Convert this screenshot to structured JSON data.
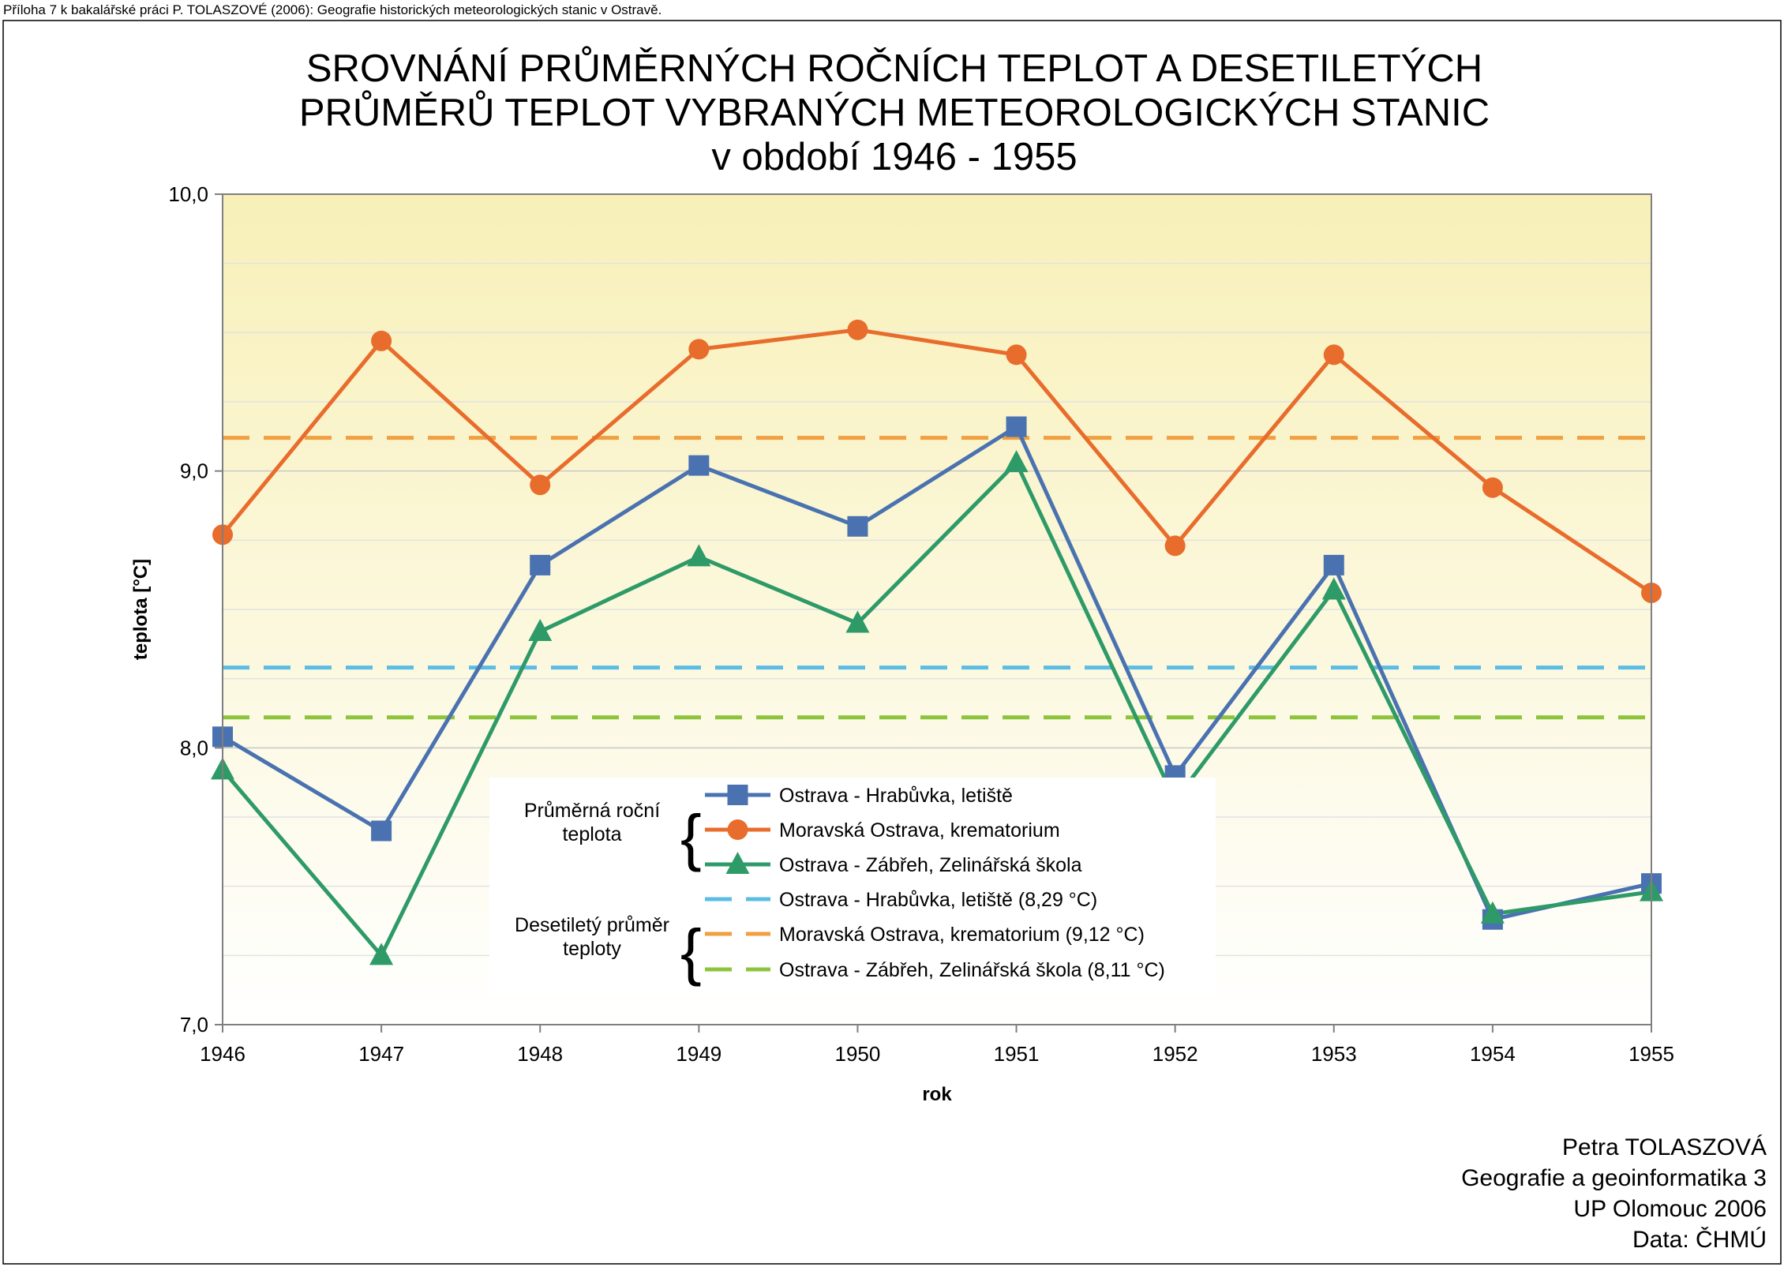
{
  "header_note": "Příloha 7 k bakalářské práci P. TOLASZOVÉ (2006): Geografie historických meteorologických stanic v Ostravě.",
  "title_lines": [
    "SROVNÁNÍ PRŮMĚRNÝCH ROČNÍCH TEPLOT A DESETILETÝCH",
    "PRŮMĚRŮ TEPLOT VYBRANÝCH METEOROLOGICKÝCH STANIC",
    "v období 1946 - 1955"
  ],
  "credits": [
    "Petra TOLASZOVÁ",
    "Geografie a geoinformatika 3",
    "UP Olomouc 2006",
    "Data: ČHMÚ"
  ],
  "legend": {
    "group_annual_lines": [
      "Průměrná roční",
      "teplota"
    ],
    "group_decade_lines": [
      "Desetiletý průměr",
      "teploty"
    ]
  },
  "colors": {
    "blue": "#4a72b0",
    "orange": "#e86c2c",
    "green": "#2e9a68",
    "light_blue": "#5bbde4",
    "light_orange": "#f0a040",
    "light_green": "#8cc43c",
    "plot_top": "#f8f0b8",
    "plot_bottom": "#ffffff"
  },
  "chart_data": {
    "type": "line",
    "title": "SROVNÁNÍ PRŮMĚRNÝCH ROČNÍCH TEPLOT A DESETILETÝCH PRŮMĚRŮ TEPLOT VYBRANÝCH METEOROLOGICKÝCH STANIC v období 1946 - 1955",
    "xlabel": "rok",
    "ylabel": "teplota [°C]",
    "ylim": [
      7.0,
      10.0
    ],
    "y_ticks": [
      "7,0",
      "8,0",
      "9,0",
      "10,0"
    ],
    "categories": [
      "1946",
      "1947",
      "1948",
      "1949",
      "1950",
      "1951",
      "1952",
      "1953",
      "1954",
      "1955"
    ],
    "grid": true,
    "legend_position": "inside-bottom-center",
    "series": [
      {
        "name": "Ostrava - Hrabůvka, letiště",
        "marker": "square",
        "color": "#4a72b0",
        "values": [
          8.04,
          7.7,
          8.66,
          9.02,
          8.8,
          9.16,
          7.9,
          8.66,
          7.38,
          7.51
        ]
      },
      {
        "name": "Moravská Ostrava, krematorium",
        "marker": "circle",
        "color": "#e86c2c",
        "values": [
          8.77,
          9.47,
          8.95,
          9.44,
          9.51,
          9.42,
          8.73,
          9.42,
          8.94,
          8.56
        ]
      },
      {
        "name": "Ostrava - Zábřeh, Zelinářská škola",
        "marker": "triangle",
        "color": "#2e9a68",
        "values": [
          7.92,
          7.25,
          8.42,
          8.69,
          8.45,
          9.03,
          7.81,
          8.57,
          7.4,
          7.48
        ]
      }
    ],
    "reference_lines": [
      {
        "name": "Ostrava - Hrabůvka, letiště  (8,29 °C)",
        "value": 8.29,
        "color": "#5bbde4"
      },
      {
        "name": "Moravská Ostrava, krematorium (9,12 °C)",
        "value": 9.12,
        "color": "#f0a040"
      },
      {
        "name": "Ostrava - Zábřeh, Zelinářská škola  (8,11 °C)",
        "value": 8.11,
        "color": "#8cc43c"
      }
    ]
  }
}
